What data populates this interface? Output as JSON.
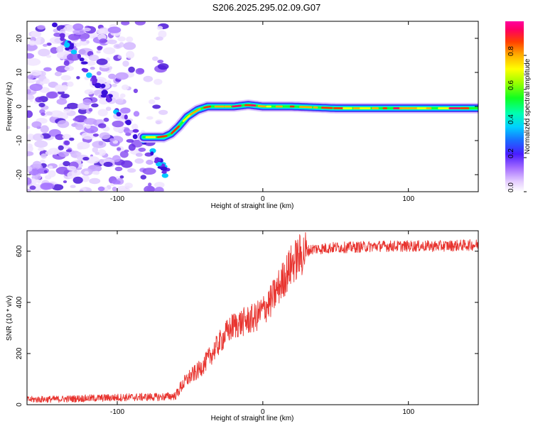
{
  "figure_title": "S206.2025.295.02.09.G07",
  "chart_data": [
    {
      "type": "heatmap",
      "title": "S206.2025.295.02.09.G07",
      "xlabel": "Height of straight line (km)",
      "ylabel": "Frequency (Hz)",
      "xlim": [
        -162,
        148
      ],
      "ylim": [
        -25,
        25
      ],
      "x_ticks": [
        -100,
        0,
        100
      ],
      "y_ticks": [
        -20,
        -10,
        0,
        10,
        20
      ],
      "colorbar_label": "Normalized spectral amplitude",
      "colorbar_ticks": [
        0.0,
        0.2,
        0.4,
        0.6,
        0.8
      ],
      "colorbar_range": [
        0,
        1
      ],
      "ridge": {
        "description": "frequency of peak spectral amplitude vs height",
        "x": [
          -82,
          -75,
          -68,
          -63,
          -58,
          -52,
          -45,
          -38,
          -30,
          -20,
          -10,
          0,
          20,
          50,
          80,
          110,
          148
        ],
        "y": [
          -9,
          -9,
          -9,
          -8,
          -6,
          -3,
          -1,
          0,
          0,
          0,
          0.5,
          0,
          0,
          -0.5,
          -0.5,
          -0.5,
          -0.5
        ]
      },
      "noise_region_x": [
        -162,
        -80
      ]
    },
    {
      "type": "line",
      "xlabel": "Height of straight line (km)",
      "ylabel": "SNR (10 * v/v)",
      "xlim": [
        -162,
        148
      ],
      "ylim": [
        0,
        680
      ],
      "x_ticks": [
        -100,
        0,
        100
      ],
      "y_ticks": [
        0,
        200,
        400,
        600
      ],
      "series": [
        {
          "name": "SNR",
          "color": "#e8342f",
          "x": [
            -162,
            -140,
            -120,
            -100,
            -80,
            -70,
            -60,
            -55,
            -50,
            -45,
            -40,
            -35,
            -30,
            -25,
            -20,
            -15,
            -10,
            -5,
            0,
            5,
            10,
            15,
            20,
            25,
            30,
            35,
            40,
            50,
            60,
            80,
            100,
            120,
            148
          ],
          "y": [
            20,
            22,
            25,
            28,
            30,
            30,
            35,
            80,
            110,
            130,
            160,
            200,
            240,
            280,
            310,
            320,
            330,
            340,
            370,
            400,
            450,
            500,
            550,
            580,
            600,
            610,
            610,
            615,
            615,
            620,
            620,
            620,
            625
          ]
        }
      ]
    }
  ]
}
